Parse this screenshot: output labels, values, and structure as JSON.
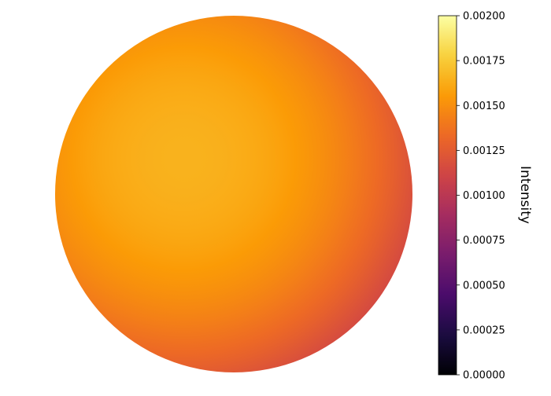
{
  "chart_data": {
    "type": "heatmap",
    "title": "",
    "shape": "disk",
    "description_value_range": [
      0.0009,
      0.00165
    ],
    "peak_value": 0.00165,
    "rim_value": 0.00095,
    "colormap": "inferno",
    "colorbar": {
      "label": "Intensity",
      "vmin": 0.0,
      "vmax": 0.002,
      "ticks": [
        0.0,
        0.00025,
        0.0005,
        0.00075,
        0.001,
        0.00125,
        0.0015,
        0.00175,
        0.002
      ],
      "tick_labels": [
        "0.00000",
        "0.00025",
        "0.00050",
        "0.00075",
        "0.00100",
        "0.00125",
        "0.00150",
        "0.00175",
        "0.00200"
      ]
    },
    "axes_visible": false,
    "grid": false
  },
  "colors": {
    "inferno_stops": [
      "#000004",
      "#1b0c41",
      "#4a0c6b",
      "#781c6d",
      "#a52c60",
      "#cf4446",
      "#ed6925",
      "#fb9b06",
      "#f7d13d",
      "#fcffa4"
    ]
  }
}
